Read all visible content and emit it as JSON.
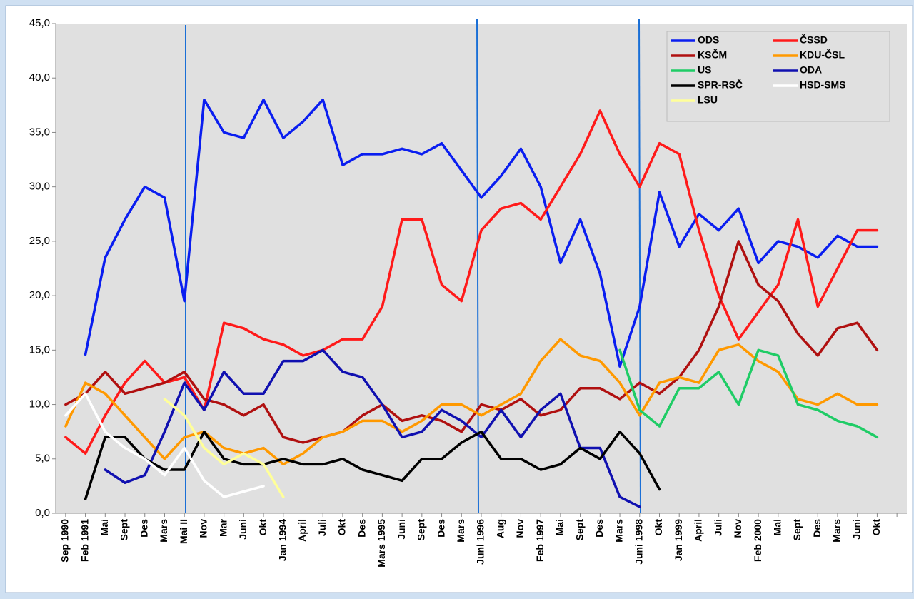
{
  "chart_data": {
    "type": "line",
    "categories": [
      "Sep 1990",
      "Feb 1991",
      "Mai",
      "Sept",
      "Des",
      "Mars",
      "Mai II",
      "Nov",
      "Mar",
      "Juni",
      "Okt",
      "Jan 1994",
      "April",
      "Juli",
      "Okt",
      "Des",
      "Mars 1995",
      "Juni",
      "Sept",
      "Des",
      "Mars",
      "Juni 1996",
      "Aug",
      "Nov",
      "Feb 1997",
      "Mai",
      "Sept",
      "Des",
      "Mars",
      "Juni 1998",
      "Okt",
      "Jan 1999",
      "April",
      "Juli",
      "Nov",
      "Feb 2000",
      "Mai",
      "Sept",
      "Des",
      "Mars",
      "Juni",
      "Okt",
      null
    ],
    "ylim": [
      0,
      45
    ],
    "yticks": [
      {
        "value": 0,
        "label": "0,0"
      },
      {
        "value": 5,
        "label": "5,0"
      },
      {
        "value": 10,
        "label": "10,0"
      },
      {
        "value": 15,
        "label": "15,0"
      },
      {
        "value": 20,
        "label": "20,0"
      },
      {
        "value": 25,
        "label": "25,0"
      },
      {
        "value": 30,
        "label": "30,0"
      },
      {
        "value": 35,
        "label": "35,0"
      },
      {
        "value": 40,
        "label": "40,0"
      },
      {
        "value": 45,
        "label": "45,0"
      }
    ],
    "grid": false,
    "legend": "upper right",
    "series": [
      {
        "name": "ODS",
        "color": "#0a1ef0",
        "values": [
          null,
          14.6,
          23.5,
          27,
          30,
          29,
          19.5,
          38,
          35,
          34.5,
          38,
          34.5,
          36,
          38,
          32,
          33,
          33,
          33.5,
          33,
          34,
          31.5,
          29,
          31,
          33.5,
          30,
          23,
          27,
          22,
          13.5,
          19,
          29.5,
          24.5,
          27.5,
          26,
          28,
          23,
          25,
          24.5,
          23.5,
          25.5,
          24.5,
          24.5,
          null
        ]
      },
      {
        "name": "ČSSD",
        "color": "#ff1a1a",
        "values": [
          7,
          5.5,
          9,
          12,
          14,
          12,
          12.5,
          9.5,
          17.5,
          17,
          16,
          15.5,
          14.5,
          15,
          16,
          16,
          19,
          27,
          27,
          21,
          19.5,
          26,
          28,
          28.5,
          27,
          30,
          33,
          37,
          33,
          30,
          34,
          33,
          26,
          20,
          16,
          18.5,
          21,
          27,
          19,
          22.5,
          26,
          26,
          null
        ]
      },
      {
        "name": "KSČM",
        "color": "#b01010",
        "values": [
          10,
          11,
          13,
          11,
          11.5,
          12,
          13,
          10.5,
          10,
          9,
          10,
          7,
          6.5,
          7,
          7.5,
          9,
          10,
          8.5,
          9,
          8.5,
          7.5,
          10,
          9.5,
          10.5,
          9,
          9.5,
          11.5,
          11.5,
          10.5,
          12,
          11,
          12.5,
          15,
          19,
          25,
          21,
          19.5,
          16.5,
          14.5,
          17,
          17.5,
          15,
          null
        ]
      },
      {
        "name": "KDU-ČSL",
        "color": "#ff9900",
        "values": [
          8,
          12,
          11,
          9,
          7,
          5,
          7,
          7.5,
          6,
          5.5,
          6,
          4.5,
          5.5,
          7,
          7.5,
          8.5,
          8.5,
          7.5,
          8.5,
          10,
          10,
          9,
          10,
          11,
          14,
          16,
          14.5,
          14,
          12,
          9,
          12,
          12.5,
          12,
          15,
          15.5,
          14,
          13,
          10.5,
          10,
          11,
          10,
          10,
          null
        ]
      },
      {
        "name": "US",
        "color": "#1fcc66",
        "values": [
          null,
          null,
          null,
          null,
          null,
          null,
          null,
          null,
          null,
          null,
          null,
          null,
          null,
          null,
          null,
          null,
          null,
          null,
          null,
          null,
          null,
          null,
          null,
          null,
          null,
          null,
          null,
          null,
          15,
          9.5,
          8,
          11.5,
          11.5,
          13,
          10,
          15,
          14.5,
          10,
          9.5,
          8.5,
          8,
          7,
          null
        ]
      },
      {
        "name": "ODA",
        "color": "#1010b0",
        "values": [
          null,
          null,
          4,
          2.8,
          3.5,
          7.5,
          12,
          9.5,
          13,
          11,
          11,
          14,
          14,
          15,
          13,
          12.5,
          10,
          7,
          7.5,
          9.5,
          8.5,
          7,
          9.5,
          7,
          9.5,
          11,
          6,
          6,
          1.5,
          0.6,
          null,
          null,
          null,
          null,
          null,
          null,
          null,
          null,
          null,
          null,
          null,
          null,
          null
        ]
      },
      {
        "name": "SPR-RSČ",
        "color": "#000000",
        "values": [
          null,
          1.3,
          7,
          7,
          5,
          4,
          4,
          7.5,
          5,
          4.5,
          4.5,
          5,
          4.5,
          4.5,
          5,
          4,
          3.5,
          3,
          5,
          5,
          6.5,
          7.5,
          5,
          5,
          4,
          4.5,
          6,
          5,
          7.5,
          5.5,
          2.2,
          null,
          null,
          null,
          null,
          null,
          null,
          null,
          null,
          null,
          null,
          null,
          null
        ]
      },
      {
        "name": "HSD-SMS",
        "color": "#ffffff",
        "values": [
          9,
          11,
          7.5,
          6,
          5,
          3.5,
          6,
          3,
          1.5,
          2,
          2.5,
          null,
          null,
          null,
          null,
          null,
          null,
          null,
          null,
          null,
          null,
          null,
          null,
          null,
          null,
          null,
          null,
          null,
          null,
          null,
          null,
          null,
          null,
          null,
          null,
          null,
          null,
          null,
          null,
          null,
          null,
          null,
          null
        ]
      },
      {
        "name": "LSU",
        "color": "#ffff99",
        "values": [
          null,
          null,
          null,
          null,
          null,
          10.5,
          9,
          6,
          4.5,
          5.5,
          4.5,
          1.5,
          null,
          null,
          null,
          null,
          null,
          null,
          null,
          null,
          null,
          null,
          null,
          null,
          null,
          null,
          null,
          null,
          null,
          null,
          null,
          null,
          null,
          null,
          null,
          null,
          null,
          null,
          null,
          null,
          null,
          null,
          null
        ]
      }
    ]
  }
}
